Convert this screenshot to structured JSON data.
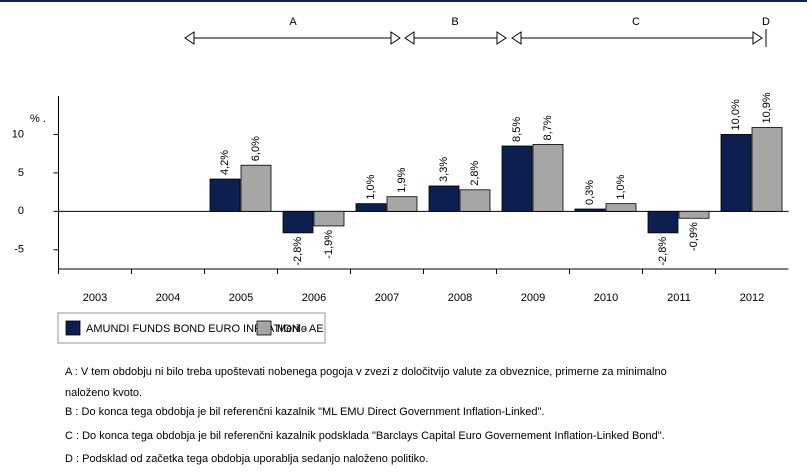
{
  "chart_data": {
    "type": "bar",
    "y_unit_label": "% .",
    "periods": [
      "A",
      "B",
      "C",
      "D"
    ],
    "categories": [
      "2003",
      "2004",
      "2005",
      "2006",
      "2007",
      "2008",
      "2009",
      "2010",
      "2011",
      "2012"
    ],
    "series": [
      {
        "name": "AMUNDI FUNDS BOND EURO INFLATION - AE",
        "color": "#0c1f4e",
        "values": [
          null,
          null,
          4.2,
          -2.8,
          1.0,
          3.3,
          8.5,
          0.3,
          -2.8,
          10.0
        ],
        "value_labels": [
          null,
          null,
          "4,2%",
          "-2,8%",
          "1,0%",
          "3,3%",
          "8,5%",
          "0,3%",
          "-2,8%",
          "10,0%"
        ]
      },
      {
        "name": "Merilo",
        "color": "#a6a6a6",
        "values": [
          null,
          null,
          6.0,
          -1.9,
          1.9,
          2.8,
          8.7,
          1.0,
          -0.9,
          10.9
        ],
        "value_labels": [
          null,
          null,
          "6,0%",
          "-1,9%",
          "1,9%",
          "2,8%",
          "8,7%",
          "1,0%",
          "-0,9%",
          "10,9%"
        ]
      }
    ],
    "ylim": [
      -7.5,
      15
    ],
    "yticks": [
      -5,
      0,
      5,
      10
    ],
    "notes": [
      [
        "A : V tem obdobju ni bilo treba upoštevati nobenega pogoja v zvezi z določitvijo valute za obveznice, primerne za minimalno",
        "naloženo kvoto."
      ],
      [
        "B : Do konca tega obdobja je bil referenčni kazalnik \"ML EMU Direct Government Inflation-Linked\"."
      ],
      [
        "C : Do konca tega obdobja je bil referenčni kazalnik podsklada \"Barclays Capital Euro Governement Inflation-Linked Bond\"."
      ],
      [
        "D : Podsklad od začetka tega obdobja uporablja sedanjo naloženo politiko."
      ]
    ]
  }
}
